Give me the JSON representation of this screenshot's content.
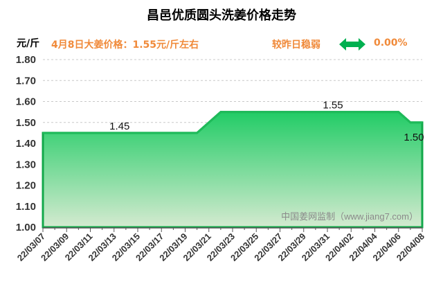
{
  "chart_data": {
    "type": "area",
    "title": "昌邑优质圆头洗姜价格走势",
    "ylabel": "元/斤",
    "ylim": [
      1.0,
      1.8
    ],
    "yticks": [
      "1.00",
      "1.10",
      "1.20",
      "1.30",
      "1.40",
      "1.50",
      "1.60",
      "1.70",
      "1.80"
    ],
    "grid": true,
    "x": [
      "22/03/07",
      "22/03/08",
      "22/03/09",
      "22/03/10",
      "22/03/11",
      "22/03/12",
      "22/03/13",
      "22/03/14",
      "22/03/15",
      "22/03/16",
      "22/03/17",
      "22/03/18",
      "22/03/19",
      "22/03/20",
      "22/03/21",
      "22/03/22",
      "22/03/23",
      "22/03/24",
      "22/03/25",
      "22/03/26",
      "22/03/27",
      "22/03/28",
      "22/03/29",
      "22/03/30",
      "22/03/31",
      "22/04/01",
      "22/04/02",
      "22/04/03",
      "22/04/04",
      "22/04/05",
      "22/04/06",
      "22/04/07",
      "22/04/08"
    ],
    "xtick_labels": [
      "22/03/07",
      "22/03/09",
      "22/03/11",
      "22/03/13",
      "22/03/15",
      "22/03/17",
      "22/03/19",
      "22/03/21",
      "22/03/23",
      "22/03/25",
      "22/03/27",
      "22/03/29",
      "22/03/31",
      "22/04/02",
      "22/04/04",
      "22/04/06",
      "22/04/08"
    ],
    "values": [
      1.45,
      1.45,
      1.45,
      1.45,
      1.45,
      1.45,
      1.45,
      1.45,
      1.45,
      1.45,
      1.45,
      1.45,
      1.45,
      1.45,
      1.5,
      1.55,
      1.55,
      1.55,
      1.55,
      1.55,
      1.55,
      1.55,
      1.55,
      1.55,
      1.55,
      1.55,
      1.55,
      1.55,
      1.55,
      1.55,
      1.55,
      1.5,
      1.5
    ],
    "data_labels": [
      {
        "x": "22/03/13",
        "text": "1.45"
      },
      {
        "x": "22/03/31",
        "text": "1.55"
      },
      {
        "x": "22/04/08",
        "text": "1.50"
      }
    ],
    "colors": {
      "line": "#1fba5a",
      "fill_top": "#22cc66",
      "fill_bottom": "#d4ead0",
      "border": "#12a84a"
    }
  },
  "header": {
    "info": "4月8日大姜价格：1.55元/斤左右",
    "compare": "较昨日稳弱",
    "change_icon": "left-right-arrow-icon",
    "change_pct": "0.00%",
    "accent": "#f08a3a",
    "arrow_color": "#00b050"
  },
  "watermark": "中国姜网监制（www.jiang7.com）"
}
